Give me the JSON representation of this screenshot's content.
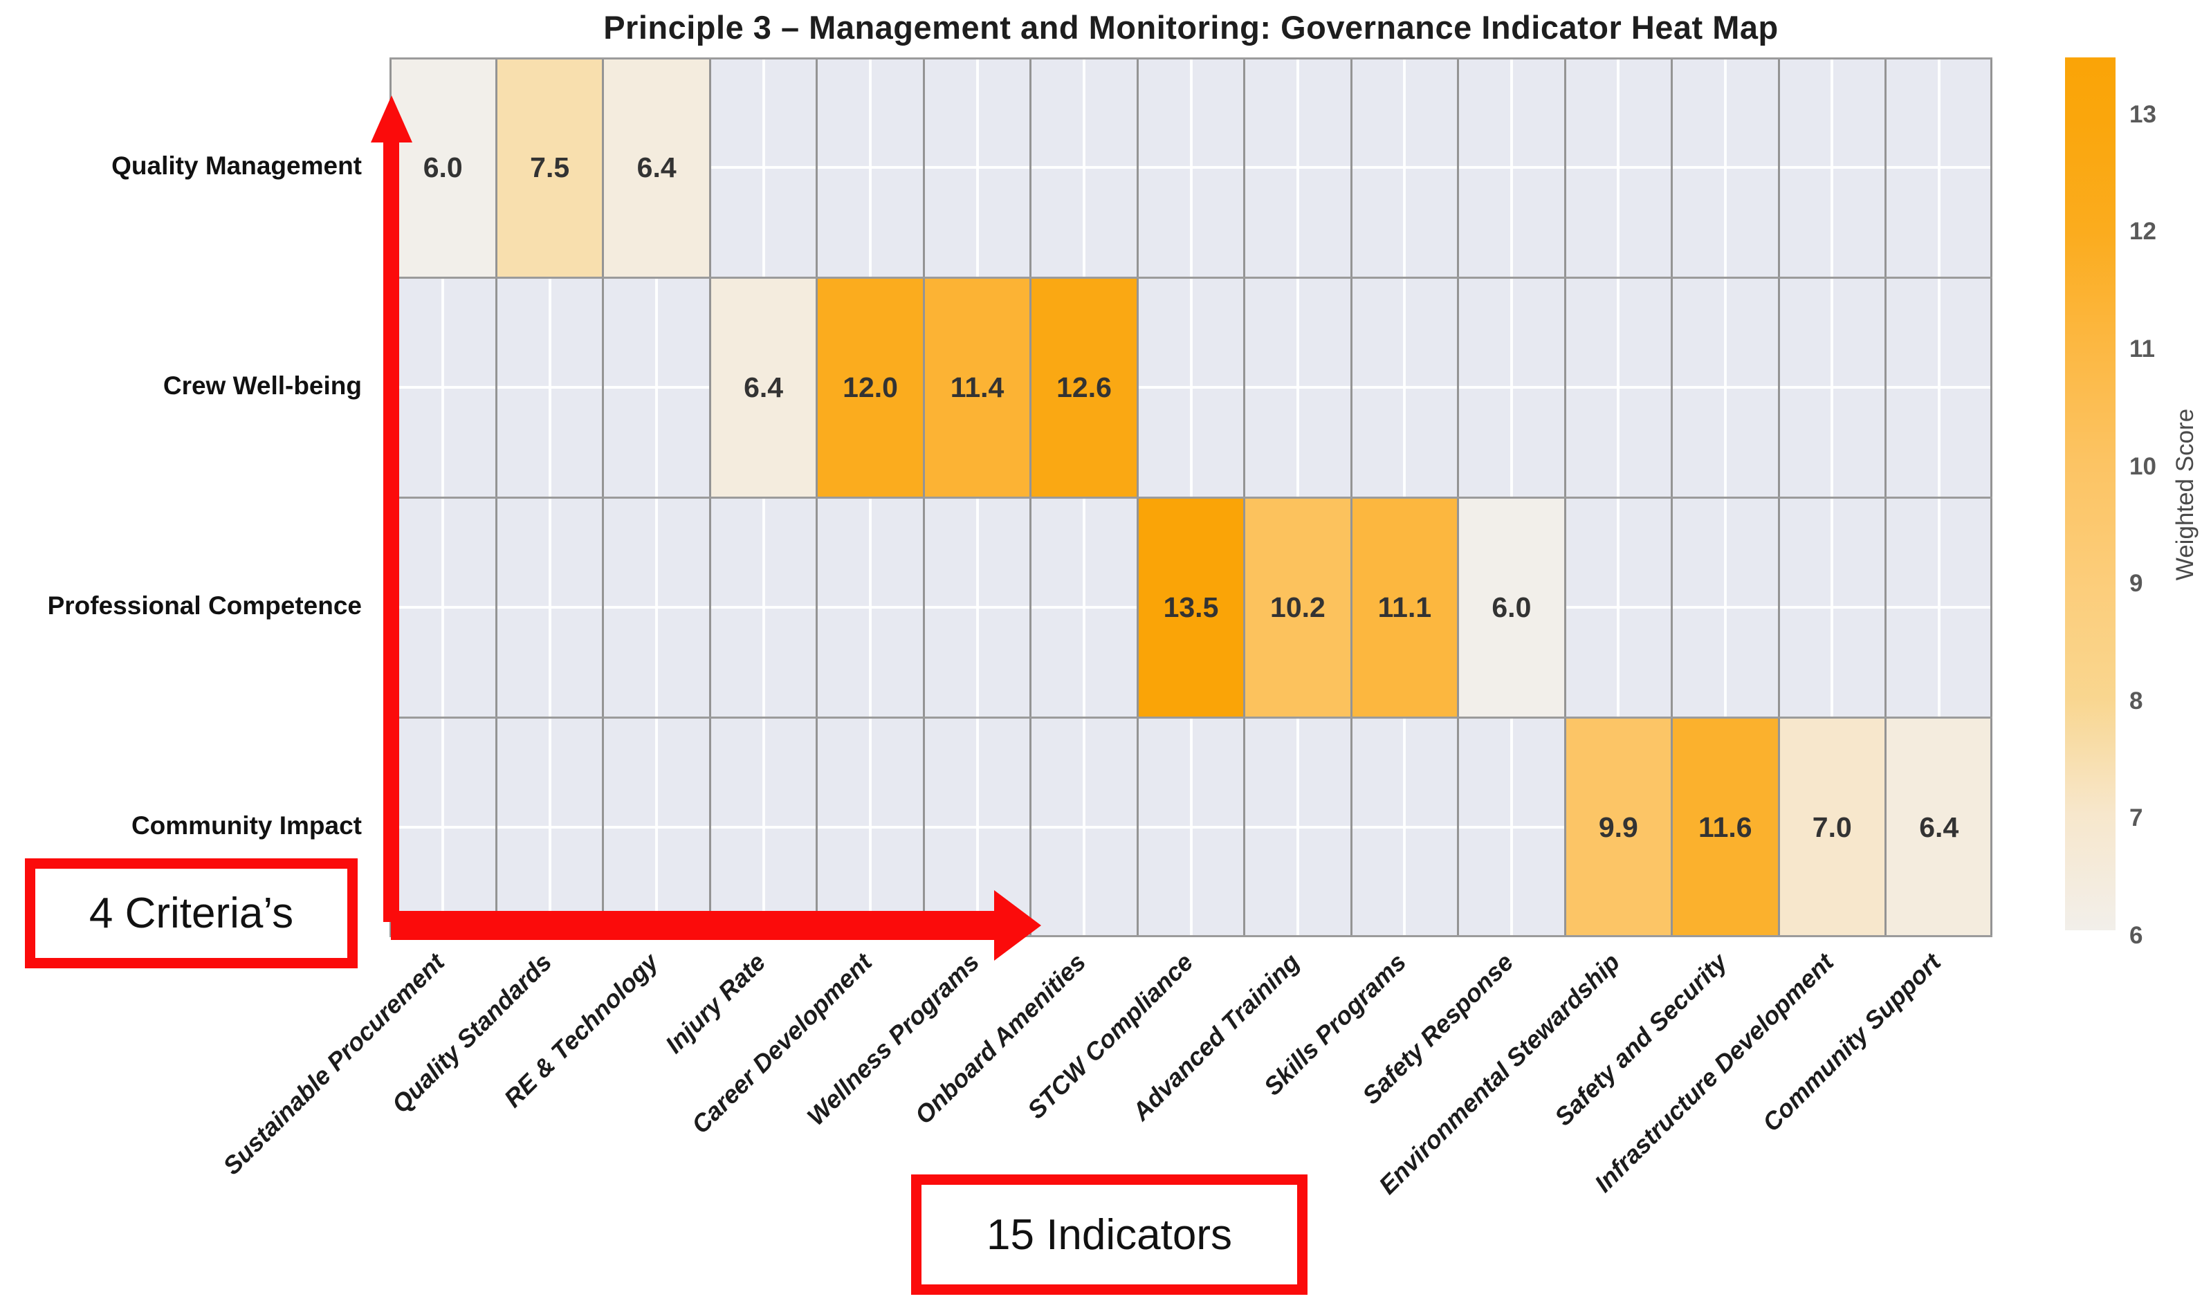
{
  "title": "Principle 3 – Management and Monitoring: Governance Indicator Heat Map",
  "chart_data": {
    "type": "heatmap",
    "title": "Principle 3 – Management and Monitoring: Governance Indicator Heat Map",
    "rows": [
      "Quality Management",
      "Crew Well-being",
      "Professional Competence",
      "Community Impact"
    ],
    "columns": [
      "Sustainable Procurement",
      "Quality Standards",
      "RE & Technology",
      "Injury Rate",
      "Career Development",
      "Wellness Programs",
      "Onboard Amenities",
      "STCW Compliance",
      "Advanced Training",
      "Skills Programs",
      "Safety Response",
      "Environmental Stewardship",
      "Safety and Security",
      "Infrastructure Development",
      "Community Support"
    ],
    "matrix": [
      [
        6.0,
        7.5,
        6.4,
        null,
        null,
        null,
        null,
        null,
        null,
        null,
        null,
        null,
        null,
        null,
        null
      ],
      [
        null,
        null,
        null,
        6.4,
        12.0,
        11.4,
        12.6,
        null,
        null,
        null,
        null,
        null,
        null,
        null,
        null
      ],
      [
        null,
        null,
        null,
        null,
        null,
        null,
        null,
        13.5,
        10.2,
        11.1,
        6.0,
        null,
        null,
        null,
        null
      ],
      [
        null,
        null,
        null,
        null,
        null,
        null,
        null,
        null,
        null,
        null,
        null,
        9.9,
        11.6,
        7.0,
        6.4
      ]
    ],
    "value_format": "1dp",
    "grid": true,
    "legend_position": "right",
    "colorbar": {
      "label": "Weighted Score",
      "tick_values": [
        6,
        7,
        8,
        9,
        10,
        11,
        12,
        13
      ],
      "vmin": 6.0,
      "vmax": 13.5
    },
    "colormap_stops": [
      [
        6.0,
        "#f2efea"
      ],
      [
        7.0,
        "#f7e7cc"
      ],
      [
        8.0,
        "#f9d68f"
      ],
      [
        9.0,
        "#fccd7a"
      ],
      [
        10.0,
        "#fcc464"
      ],
      [
        11.0,
        "#fcb843"
      ],
      [
        12.0,
        "#fbac1e"
      ],
      [
        13.0,
        "#faa60c"
      ],
      [
        13.5,
        "#faa407"
      ]
    ],
    "empty_cell_color": "#e7e9f1"
  },
  "annotations": {
    "criteria_box_label": "4 Criteria’s",
    "indicators_box_label": "15 Indicators",
    "accent_color": "#fb0b0b"
  }
}
